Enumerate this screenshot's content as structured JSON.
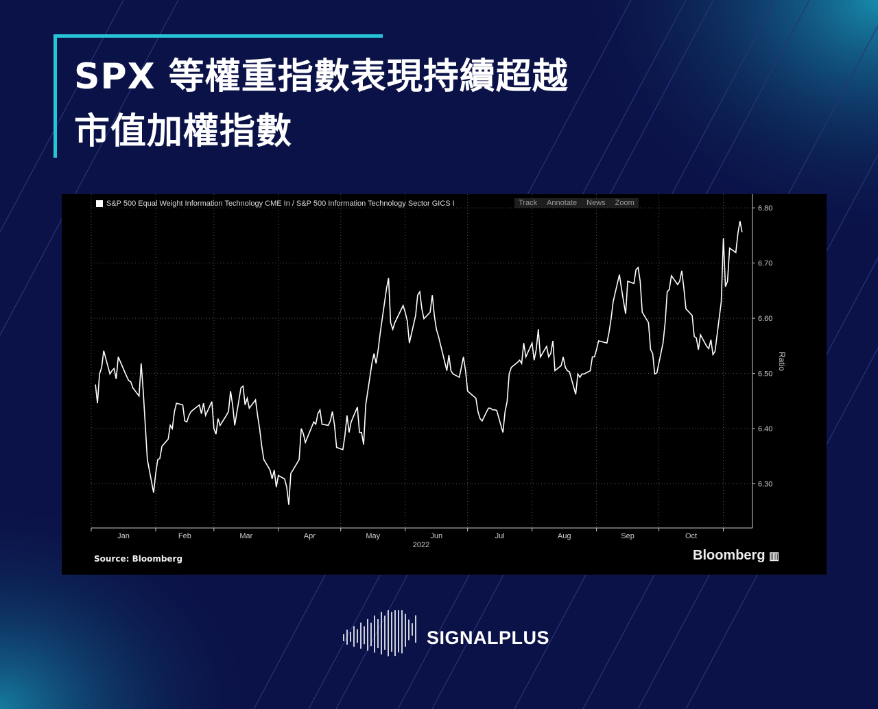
{
  "header": {
    "title_line1": "SPX 等權重指數表現持續超越",
    "title_line2": "市值加權指數"
  },
  "chart_toolbar": {
    "track": "Track",
    "annotate": "Annotate",
    "news": "News",
    "zoom": "Zoom"
  },
  "footer": {
    "source": "Source: Bloomberg",
    "brand": "Bloomberg",
    "logo_text": "SIGNALPLUS"
  },
  "colors": {
    "background": "#0b1248",
    "accent": "#27c3d6",
    "chart_bg": "#000000",
    "line": "#ffffff"
  },
  "chart_data": {
    "type": "line",
    "title": "",
    "legend": "S&P 500 Equal Weight Information Technology CME In / S&P 500 Information Technology Sector GICS I",
    "legend_placement": "top-left",
    "ylabel": "Ratio",
    "xlabel": "2022",
    "ylim": [
      6.22,
      6.825
    ],
    "xlim": [
      "2022-01-01",
      "2022-11-15"
    ],
    "y_ticks": [
      "6.30",
      "6.40",
      "6.50",
      "6.60",
      "6.70",
      "6.80"
    ],
    "x_ticks": [
      "Jan",
      "Feb",
      "Mar",
      "Apr",
      "May",
      "Jun",
      "Jul",
      "Aug",
      "Sep",
      "Oct"
    ],
    "grid": true,
    "series": [
      {
        "dates": [
          "2022-01-03",
          "2022-01-04",
          "2022-01-05",
          "2022-01-06",
          "2022-01-07",
          "2022-01-10",
          "2022-01-11",
          "2022-01-12",
          "2022-01-13",
          "2022-01-14",
          "2022-01-18",
          "2022-01-19",
          "2022-01-20",
          "2022-01-21",
          "2022-01-24",
          "2022-01-25",
          "2022-01-26",
          "2022-01-27",
          "2022-01-28",
          "2022-01-31",
          "2022-02-01",
          "2022-02-02",
          "2022-02-03",
          "2022-02-04",
          "2022-02-07",
          "2022-02-08",
          "2022-02-09",
          "2022-02-10",
          "2022-02-11",
          "2022-02-14",
          "2022-02-15",
          "2022-02-16",
          "2022-02-17",
          "2022-02-18",
          "2022-02-22",
          "2022-02-23",
          "2022-02-24",
          "2022-02-25",
          "2022-02-28",
          "2022-03-01",
          "2022-03-02",
          "2022-03-03",
          "2022-03-04",
          "2022-03-07",
          "2022-03-08",
          "2022-03-09",
          "2022-03-10",
          "2022-03-11",
          "2022-03-14",
          "2022-03-15",
          "2022-03-16",
          "2022-03-17",
          "2022-03-18",
          "2022-03-21",
          "2022-03-22",
          "2022-03-23",
          "2022-03-24",
          "2022-03-25",
          "2022-03-28",
          "2022-03-29",
          "2022-03-30",
          "2022-03-31",
          "2022-04-01",
          "2022-04-04",
          "2022-04-05",
          "2022-04-06",
          "2022-04-07",
          "2022-04-08",
          "2022-04-11",
          "2022-04-12",
          "2022-04-13",
          "2022-04-14",
          "2022-04-18",
          "2022-04-19",
          "2022-04-20",
          "2022-04-21",
          "2022-04-22",
          "2022-04-25",
          "2022-04-26",
          "2022-04-27",
          "2022-04-28",
          "2022-04-29",
          "2022-05-02",
          "2022-05-03",
          "2022-05-04",
          "2022-05-05",
          "2022-05-06",
          "2022-05-09",
          "2022-05-10",
          "2022-05-11",
          "2022-05-12",
          "2022-05-13",
          "2022-05-16",
          "2022-05-17",
          "2022-05-18",
          "2022-05-19",
          "2022-05-20",
          "2022-05-23",
          "2022-05-24",
          "2022-05-25",
          "2022-05-26",
          "2022-05-27",
          "2022-05-31",
          "2022-06-01",
          "2022-06-02",
          "2022-06-03",
          "2022-06-06",
          "2022-06-07",
          "2022-06-08",
          "2022-06-09",
          "2022-06-10",
          "2022-06-13",
          "2022-06-14",
          "2022-06-15",
          "2022-06-16",
          "2022-06-17",
          "2022-06-21",
          "2022-06-22",
          "2022-06-23",
          "2022-06-24",
          "2022-06-27",
          "2022-06-28",
          "2022-06-29",
          "2022-06-30",
          "2022-07-01",
          "2022-07-05",
          "2022-07-06",
          "2022-07-07",
          "2022-07-08",
          "2022-07-11",
          "2022-07-12",
          "2022-07-13",
          "2022-07-14",
          "2022-07-15",
          "2022-07-18",
          "2022-07-19",
          "2022-07-20",
          "2022-07-21",
          "2022-07-22",
          "2022-07-25",
          "2022-07-26",
          "2022-07-27",
          "2022-07-28",
          "2022-07-29",
          "2022-08-01",
          "2022-08-02",
          "2022-08-03",
          "2022-08-04",
          "2022-08-05",
          "2022-08-08",
          "2022-08-09",
          "2022-08-10",
          "2022-08-11",
          "2022-08-12",
          "2022-08-15",
          "2022-08-16",
          "2022-08-17",
          "2022-08-18",
          "2022-08-19",
          "2022-08-22",
          "2022-08-23",
          "2022-08-24",
          "2022-08-25",
          "2022-08-26",
          "2022-08-29",
          "2022-08-30",
          "2022-08-31",
          "2022-09-01",
          "2022-09-02",
          "2022-09-06",
          "2022-09-07",
          "2022-09-08",
          "2022-09-09",
          "2022-09-12",
          "2022-09-13",
          "2022-09-14",
          "2022-09-15",
          "2022-09-16",
          "2022-09-19",
          "2022-09-20",
          "2022-09-21",
          "2022-09-22",
          "2022-09-23",
          "2022-09-26",
          "2022-09-27",
          "2022-09-28",
          "2022-09-29",
          "2022-09-30",
          "2022-10-03",
          "2022-10-04",
          "2022-10-05",
          "2022-10-06",
          "2022-10-07",
          "2022-10-10",
          "2022-10-11",
          "2022-10-12",
          "2022-10-13",
          "2022-10-14",
          "2022-10-17",
          "2022-10-18",
          "2022-10-19",
          "2022-10-20",
          "2022-10-21",
          "2022-10-24",
          "2022-10-25",
          "2022-10-26",
          "2022-10-27",
          "2022-10-28",
          "2022-10-31",
          "2022-11-01",
          "2022-11-02",
          "2022-11-03",
          "2022-11-04",
          "2022-11-07",
          "2022-11-08",
          "2022-11-09",
          "2022-11-10"
        ],
        "values": [
          6.48,
          6.446,
          6.499,
          6.511,
          6.541,
          6.499,
          6.505,
          6.509,
          6.49,
          6.53,
          6.495,
          6.487,
          6.485,
          6.474,
          6.459,
          6.518,
          6.468,
          6.406,
          6.344,
          6.284,
          6.319,
          6.344,
          6.346,
          6.368,
          6.381,
          6.406,
          6.4,
          6.431,
          6.446,
          6.443,
          6.414,
          6.412,
          6.424,
          6.431,
          6.443,
          6.427,
          6.446,
          6.424,
          6.449,
          6.4,
          6.39,
          6.418,
          6.406,
          6.424,
          6.431,
          6.468,
          6.443,
          6.406,
          6.474,
          6.477,
          6.443,
          6.455,
          6.437,
          6.452,
          6.424,
          6.4,
          6.368,
          6.344,
          6.325,
          6.309,
          6.325,
          6.294,
          6.315,
          6.309,
          6.294,
          6.262,
          6.319,
          6.325,
          6.344,
          6.4,
          6.391,
          6.375,
          6.412,
          6.408,
          6.427,
          6.434,
          6.408,
          6.406,
          6.414,
          6.431,
          6.406,
          6.366,
          6.362,
          6.387,
          6.424,
          6.393,
          6.412,
          6.439,
          6.393,
          6.393,
          6.371,
          6.443,
          6.518,
          6.536,
          6.518,
          6.543,
          6.574,
          6.654,
          6.673,
          6.592,
          6.58,
          6.592,
          6.623,
          6.611,
          6.595,
          6.555,
          6.605,
          6.642,
          6.648,
          6.617,
          6.599,
          6.611,
          6.642,
          6.605,
          6.58,
          6.567,
          6.505,
          6.533,
          6.505,
          6.499,
          6.493,
          6.511,
          6.53,
          6.505,
          6.468,
          6.455,
          6.431,
          6.418,
          6.414,
          6.437,
          6.437,
          6.434,
          6.434,
          6.433,
          6.393,
          6.431,
          6.449,
          6.499,
          6.511,
          6.52,
          6.524,
          6.518,
          6.555,
          6.53,
          6.555,
          6.524,
          6.543,
          6.58,
          6.53,
          6.549,
          6.53,
          6.536,
          6.559,
          6.505,
          6.514,
          6.53,
          6.511,
          6.505,
          6.503,
          6.462,
          6.499,
          6.493,
          6.499,
          6.499,
          6.505,
          6.53,
          6.53,
          6.543,
          6.559,
          6.555,
          6.574,
          6.599,
          6.63,
          6.679,
          6.654,
          6.63,
          6.608,
          6.667,
          6.663,
          6.688,
          6.692,
          6.667,
          6.611,
          6.592,
          6.543,
          6.536,
          6.499,
          6.501,
          6.555,
          6.592,
          6.648,
          6.652,
          6.677,
          6.661,
          6.667,
          6.686,
          6.654,
          6.617,
          6.605,
          6.567,
          6.564,
          6.543,
          6.57,
          6.549,
          6.545,
          6.561,
          6.534,
          6.54,
          6.63,
          6.745,
          6.657,
          6.667,
          6.727,
          6.719,
          6.754,
          6.776,
          6.756
        ]
      }
    ]
  }
}
